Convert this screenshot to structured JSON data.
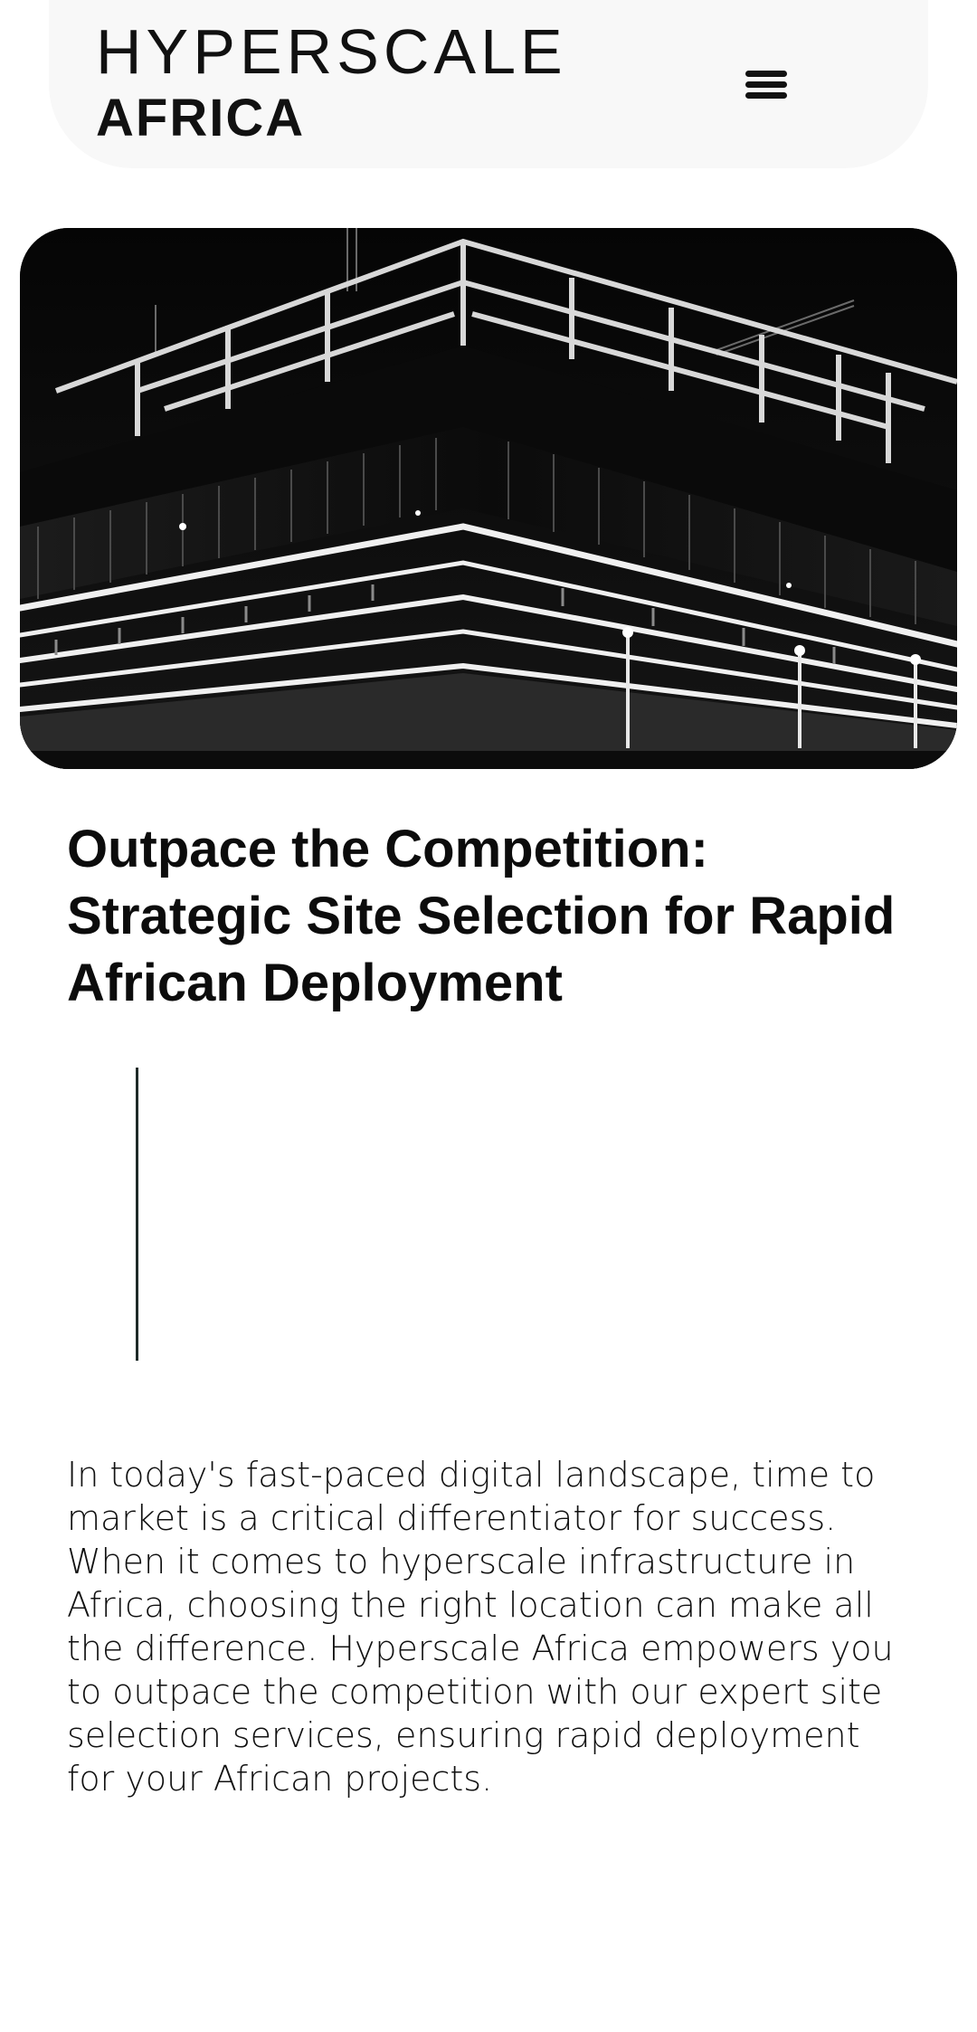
{
  "header": {
    "logo_line1": "HYPERSCALE",
    "logo_line2": "AFRICA",
    "menu_icon": "hamburger-menu-icon"
  },
  "hero": {
    "image_subject": "black-and-white night photo of a glass office building under construction"
  },
  "article": {
    "title": "Outpace the Competition: Strategic Site Selection for Rapid African Deployment",
    "paragraph": "In today's fast-paced digital landscape, time to market is a critical differentiator for success. When it comes to hyperscale infrastructure in Africa, choosing the right location can make all the difference. Hyperscale Africa empowers you to outpace the competition with our expert site selection services, ensuring rapid deployment for your African projects."
  },
  "colors": {
    "header_bg": "#f8f8f8",
    "text": "#0d0d0d",
    "divider": "#1e2a28",
    "page_bg": "#ffffff"
  }
}
